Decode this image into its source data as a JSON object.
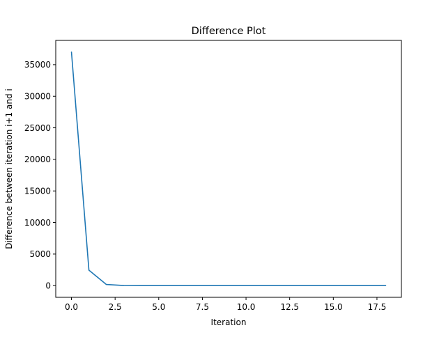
{
  "chart_data": {
    "type": "line",
    "title": "Difference Plot",
    "xlabel": "Iteration",
    "ylabel": "Difference between iteration i+1 and i",
    "x": [
      0,
      1,
      2,
      3,
      4,
      5,
      6,
      7,
      8,
      9,
      10,
      11,
      12,
      13,
      14,
      15,
      16,
      17,
      18
    ],
    "series": [
      {
        "name": "",
        "color": "#1f77b4",
        "values": [
          37000,
          2450,
          180,
          20,
          5,
          2,
          1,
          0,
          0,
          0,
          0,
          0,
          0,
          0,
          0,
          0,
          0,
          0,
          0
        ]
      }
    ],
    "xlim": [
      -0.9,
      18.9
    ],
    "ylim": [
      -1850,
      38850
    ],
    "xticks": [
      0.0,
      2.5,
      5.0,
      7.5,
      10.0,
      12.5,
      15.0,
      17.5
    ],
    "xtick_labels": [
      "0.0",
      "2.5",
      "5.0",
      "7.5",
      "10.0",
      "12.5",
      "15.0",
      "17.5"
    ],
    "yticks": [
      0,
      5000,
      10000,
      15000,
      20000,
      25000,
      30000,
      35000
    ],
    "ytick_labels": [
      "0",
      "5000",
      "10000",
      "15000",
      "20000",
      "25000",
      "30000",
      "35000"
    ],
    "grid": false,
    "legend": "none"
  }
}
